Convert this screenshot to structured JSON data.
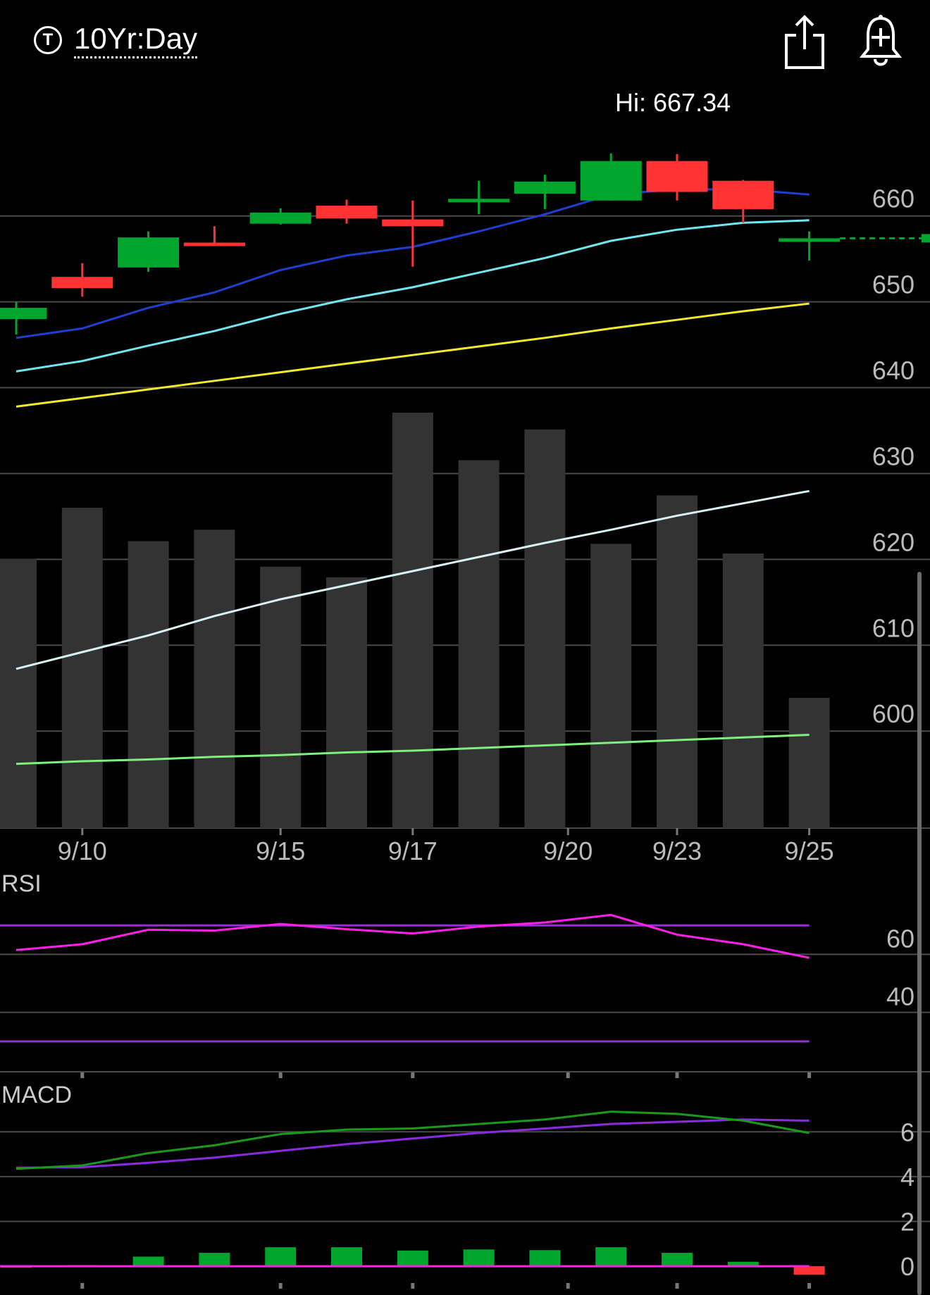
{
  "header": {
    "ticker_icon": "T",
    "title": "10Yr:Day",
    "share_icon": "share-icon",
    "alert_icon": "add-alert-icon"
  },
  "colors": {
    "up": "#00a52c",
    "down": "#ff3333",
    "volume": "#333333",
    "ma1": "#1f3fd0",
    "ma2": "#6fe6f0",
    "ma3": "#f2e92b",
    "vol_ma": "#d8f2f2",
    "vol_ma2": "#7ef07e",
    "rsi": "#ff1fe8",
    "rsi_bands": "#9a2ed6",
    "macd": "#1a9a1a",
    "macd_signal": "#8a2be2",
    "macd_zero": "#ff1fe8",
    "grid": "#4a4a4a"
  },
  "chart_data": [
    {
      "type": "candlestick",
      "hi_label": "Hi: 667.34",
      "price_ticks": [
        660,
        650,
        640,
        630,
        620,
        610,
        600
      ],
      "ylim": [
        588.7,
        674.0
      ],
      "date_ticks": [
        {
          "i": 1,
          "label": "9/10"
        },
        {
          "i": 4,
          "label": "9/15"
        },
        {
          "i": 6,
          "label": "9/17"
        },
        {
          "i": 8.35,
          "label": "9/20"
        },
        {
          "i": 10,
          "label": "9/23"
        },
        {
          "i": 12,
          "label": "9/25"
        }
      ],
      "candles": [
        {
          "o": 648.0,
          "c": 649.3,
          "h": 650.0,
          "l": 646.2
        },
        {
          "o": 652.9,
          "c": 651.6,
          "h": 654.5,
          "l": 650.6
        },
        {
          "o": 654.0,
          "c": 657.5,
          "h": 658.2,
          "l": 653.5
        },
        {
          "o": 656.9,
          "c": 656.8,
          "h": 658.8,
          "l": 656.5
        },
        {
          "o": 659.1,
          "c": 660.4,
          "h": 660.9,
          "l": 659.0
        },
        {
          "o": 661.2,
          "c": 659.7,
          "h": 661.9,
          "l": 659.1
        },
        {
          "o": 659.6,
          "c": 658.8,
          "h": 661.8,
          "l": 654.1
        },
        {
          "o": 661.6,
          "c": 662.0,
          "h": 664.1,
          "l": 660.2
        },
        {
          "o": 662.6,
          "c": 664.0,
          "h": 664.8,
          "l": 660.8
        },
        {
          "o": 661.8,
          "c": 666.4,
          "h": 667.3,
          "l": 661.8
        },
        {
          "o": 666.4,
          "c": 662.8,
          "h": 667.2,
          "l": 661.8
        },
        {
          "o": 664.1,
          "c": 660.8,
          "h": 664.2,
          "l": 659.2
        },
        {
          "o": 657.0,
          "c": 657.4,
          "h": 658.2,
          "l": 654.8
        }
      ],
      "last_price": 657.4,
      "ma_series": [
        {
          "values": [
            645.8,
            646.9,
            649.3,
            651.1,
            653.7,
            655.4,
            656.4,
            658.2,
            660.2,
            662.5,
            663.1,
            663.1,
            662.5
          ]
        },
        {
          "values": [
            641.9,
            643.1,
            644.9,
            646.6,
            648.6,
            650.3,
            651.7,
            653.4,
            655.1,
            657.1,
            658.4,
            659.2,
            659.5
          ]
        },
        {
          "values": [
            637.8,
            638.8,
            639.8,
            640.8,
            641.8,
            642.8,
            643.8,
            644.8,
            645.8,
            646.9,
            647.9,
            648.9,
            649.8
          ]
        }
      ],
      "volume": {
        "values": [
          306,
          364,
          326,
          339,
          297,
          285,
          472,
          418,
          453,
          323,
          378,
          312,
          148
        ],
        "ma": [
          181,
          200,
          219,
          241,
          260,
          276,
          292,
          308,
          324,
          339,
          355,
          369
        ],
        "ma_last": 383,
        "ma2": [
          73,
          76,
          78,
          81,
          83,
          86,
          88,
          91,
          94,
          97,
          100,
          103,
          106
        ]
      }
    },
    {
      "type": "line",
      "label": "RSI",
      "ticks": [
        60,
        40
      ],
      "ylim": [
        20,
        88
      ],
      "upper_band": 70,
      "lower_band": 30,
      "values": [
        61.5,
        63.5,
        68.5,
        68.2,
        70.5,
        68.7,
        67.2,
        69.6,
        71.0,
        73.6,
        66.8,
        63.5,
        58.8
      ]
    },
    {
      "type": "line",
      "label": "MACD",
      "ticks": [
        6,
        4,
        2,
        0
      ],
      "ylim": [
        -1.0,
        7.8
      ],
      "macd": [
        4.35,
        4.5,
        5.05,
        5.4,
        5.9,
        6.1,
        6.15,
        6.35,
        6.55,
        6.9,
        6.8,
        6.5,
        5.95
      ],
      "signal": [
        4.4,
        4.42,
        4.62,
        4.85,
        5.15,
        5.45,
        5.7,
        5.95,
        6.15,
        6.35,
        6.45,
        6.55,
        6.5
      ],
      "histogram": [
        -0.05,
        0.05,
        0.43,
        0.6,
        0.85,
        0.85,
        0.7,
        0.75,
        0.72,
        0.85,
        0.6,
        0.2,
        -0.38
      ]
    }
  ]
}
